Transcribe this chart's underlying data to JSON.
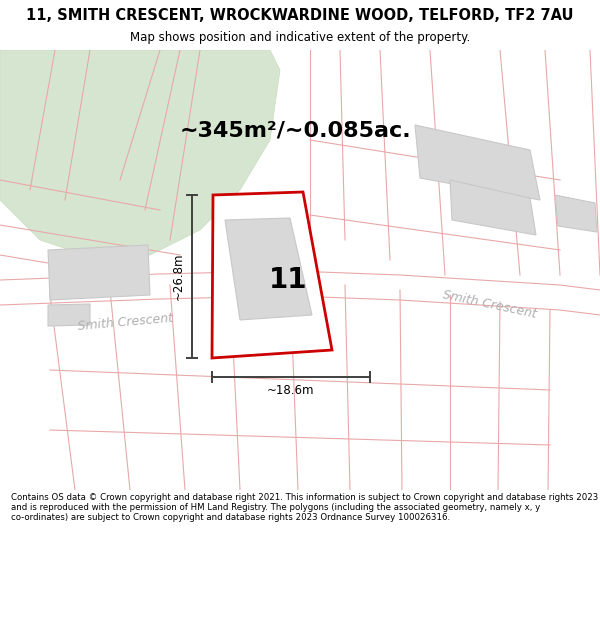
{
  "title_line1": "11, SMITH CRESCENT, WROCKWARDINE WOOD, TELFORD, TF2 7AU",
  "title_line2": "Map shows position and indicative extent of the property.",
  "area_text": "~345m²/~0.085ac.",
  "number_label": "11",
  "dim_height": "~26.8m",
  "dim_width": "~18.6m",
  "street_name_left": "Smith Crescent",
  "street_name_right": "Smith Crescent",
  "footer_text": "Contains OS data © Crown copyright and database right 2021. This information is subject to Crown copyright and database rights 2023 and is reproduced with the permission of HM Land Registry. The polygons (including the associated geometry, namely x, y co-ordinates) are subject to Crown copyright and database rights 2023 Ordnance Survey 100026316.",
  "map_bg": "#ffffff",
  "property_fill": "#ffffff",
  "property_edge": "#cc0000",
  "green_color": "#d6e5d0",
  "green_edge": "#c8dcc2",
  "neighbor_fill": "#d8d8d8",
  "neighbor_edge": "#c8c8c8",
  "pink": "#e8a8a8",
  "dim_color": "#404040",
  "street_color": "#b0b0b0",
  "title_color": "#000000",
  "footer_color": "#000000"
}
